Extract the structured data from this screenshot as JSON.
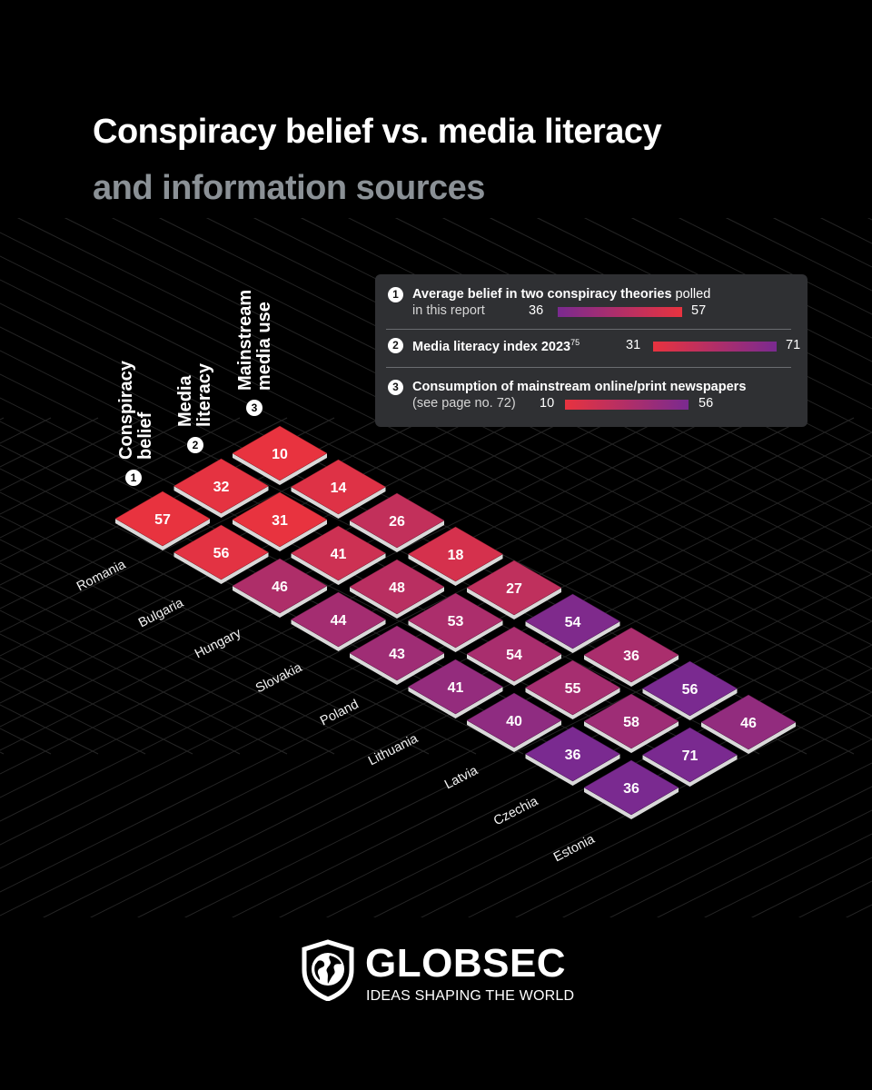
{
  "title": "Conspiracy belief vs. media literacy",
  "subtitle": "and information sources",
  "legend": {
    "items": [
      {
        "num": "1",
        "bold": "Average belief in two conspiracy theories",
        "rest": " polled",
        "line2": "in this report",
        "min": "36",
        "max": "57"
      },
      {
        "num": "2",
        "bold": "Media literacy index 2023",
        "sup": "75",
        "min": "31",
        "max": "71"
      },
      {
        "num": "3",
        "bold": "Consumption of mainstream online/print newspapers",
        "line2": "(see page no. 72)",
        "min": "10",
        "max": "56"
      }
    ]
  },
  "columns": [
    {
      "num": "1",
      "label": [
        "Conspiracy",
        "belief"
      ]
    },
    {
      "num": "2",
      "label": [
        "Media",
        "literacy"
      ]
    },
    {
      "num": "3",
      "label": [
        "Mainstream",
        "media use"
      ]
    }
  ],
  "chart_data": {
    "type": "heatmap",
    "title": "Conspiracy belief vs. media literacy",
    "subtitle": "and information sources",
    "rows": [
      "Romania",
      "Bulgaria",
      "Hungary",
      "Slovakia",
      "Poland",
      "Lithuania",
      "Latvia",
      "Czechia",
      "Estonia"
    ],
    "columns": [
      "Conspiracy belief",
      "Media literacy",
      "Mainstream media use"
    ],
    "values": [
      [
        57,
        32,
        10
      ],
      [
        56,
        31,
        14
      ],
      [
        46,
        41,
        26
      ],
      [
        44,
        48,
        18
      ],
      [
        43,
        53,
        27
      ],
      [
        41,
        54,
        54
      ],
      [
        40,
        55,
        36
      ],
      [
        36,
        58,
        56
      ],
      [
        36,
        71,
        46
      ]
    ],
    "ranges": [
      [
        36,
        57
      ],
      [
        31,
        71
      ],
      [
        10,
        56
      ]
    ],
    "colors": {
      "high_risk": "#e8333f",
      "low_risk": "#7a2a90"
    }
  },
  "logo": {
    "name": "GLOBSEC",
    "tagline": "IDEAS SHAPING THE WORLD"
  }
}
